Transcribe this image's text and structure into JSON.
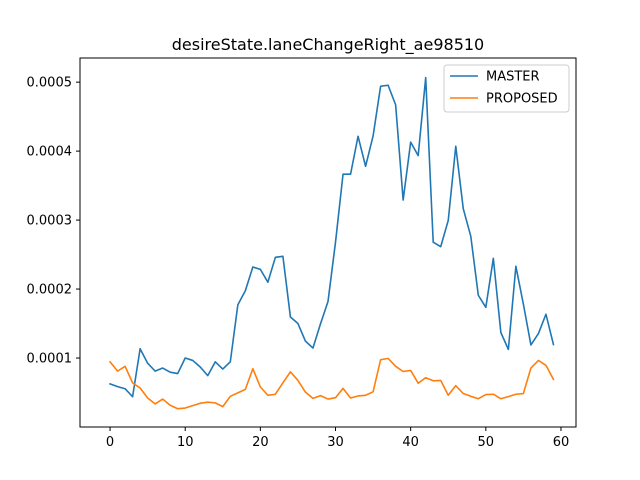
{
  "chart_data": {
    "type": "line",
    "title": "desireState.laneChangeRight_ae98510",
    "xlabel": "",
    "ylabel": "",
    "xlim": [
      -4,
      62
    ],
    "ylim": [
      0,
      0.000535
    ],
    "xticks": [
      0,
      10,
      20,
      30,
      40,
      50,
      60
    ],
    "xtick_labels": [
      "0",
      "10",
      "20",
      "30",
      "40",
      "50",
      "60"
    ],
    "yticks": [
      0.0001,
      0.0002,
      0.0003,
      0.0004,
      0.0005
    ],
    "ytick_labels": [
      "0.0001",
      "0.0002",
      "0.0003",
      "0.0004",
      "0.0005"
    ],
    "grid": false,
    "legend_position": "top-right",
    "x": [
      0,
      1,
      2,
      3,
      4,
      5,
      6,
      7,
      8,
      9,
      10,
      11,
      12,
      13,
      14,
      15,
      16,
      17,
      18,
      19,
      20,
      21,
      22,
      23,
      24,
      25,
      26,
      27,
      28,
      29,
      30,
      31,
      32,
      33,
      34,
      35,
      36,
      37,
      38,
      39,
      40,
      41,
      42,
      43,
      44,
      45,
      46,
      47,
      48,
      49,
      50,
      51,
      52,
      53,
      54,
      55,
      56,
      57,
      58,
      59
    ],
    "series": [
      {
        "name": "MASTER",
        "color": "#1f77b4",
        "values": [
          6.25e-05,
          5.85e-05,
          5.55e-05,
          4.4e-05,
          0.0001135,
          9.25e-05,
          8.1e-05,
          8.55e-05,
          7.95e-05,
          7.75e-05,
          0.0001,
          9.65e-05,
          8.7e-05,
          7.45e-05,
          9.45e-05,
          8.4e-05,
          9.45e-05,
          0.000177,
          0.0001975,
          0.000232,
          0.0002285,
          0.00021,
          0.000246,
          0.0002475,
          0.0001595,
          0.00015,
          0.0001245,
          0.0001145,
          0.0001495,
          0.000182,
          0.000268,
          0.0003665,
          0.0003665,
          0.0004215,
          0.000378,
          0.000422,
          0.000494,
          0.0004955,
          0.000467,
          0.000329,
          0.000413,
          0.0003935,
          0.0005065,
          0.000268,
          0.0002615,
          0.0002995,
          0.000407,
          0.0003165,
          0.0002765,
          0.000191,
          0.0001735,
          0.0002445,
          0.000137,
          0.0001125,
          0.000233,
          0.000178,
          0.000119,
          0.0001355,
          0.0001635,
          0.0001195
        ]
      },
      {
        "name": "PROPOSED",
        "color": "#ff7f0e",
        "values": [
          9.45e-05,
          8.1e-05,
          8.8e-05,
          6.4e-05,
          5.65e-05,
          4.2e-05,
          3.35e-05,
          4.05e-05,
          3.15e-05,
          2.65e-05,
          2.75e-05,
          3.1e-05,
          3.45e-05,
          3.6e-05,
          3.5e-05,
          2.95e-05,
          4.45e-05,
          4.95e-05,
          5.45e-05,
          8.45e-05,
          5.8e-05,
          4.6e-05,
          4.75e-05,
          6.4e-05,
          8e-05,
          6.75e-05,
          5.05e-05,
          4.15e-05,
          4.55e-05,
          4.05e-05,
          4.25e-05,
          5.6e-05,
          4.2e-05,
          4.5e-05,
          4.6e-05,
          5.1e-05,
          9.75e-05,
          9.95e-05,
          8.8e-05,
          8.05e-05,
          8.2e-05,
          6.35e-05,
          7.15e-05,
          6.7e-05,
          6.75e-05,
          4.6e-05,
          6e-05,
          4.85e-05,
          4.45e-05,
          4.1e-05,
          4.7e-05,
          4.75e-05,
          4.1e-05,
          4.4e-05,
          4.75e-05,
          4.85e-05,
          8.55e-05,
          9.65e-05,
          8.95e-05,
          6.9e-05
        ]
      }
    ]
  }
}
